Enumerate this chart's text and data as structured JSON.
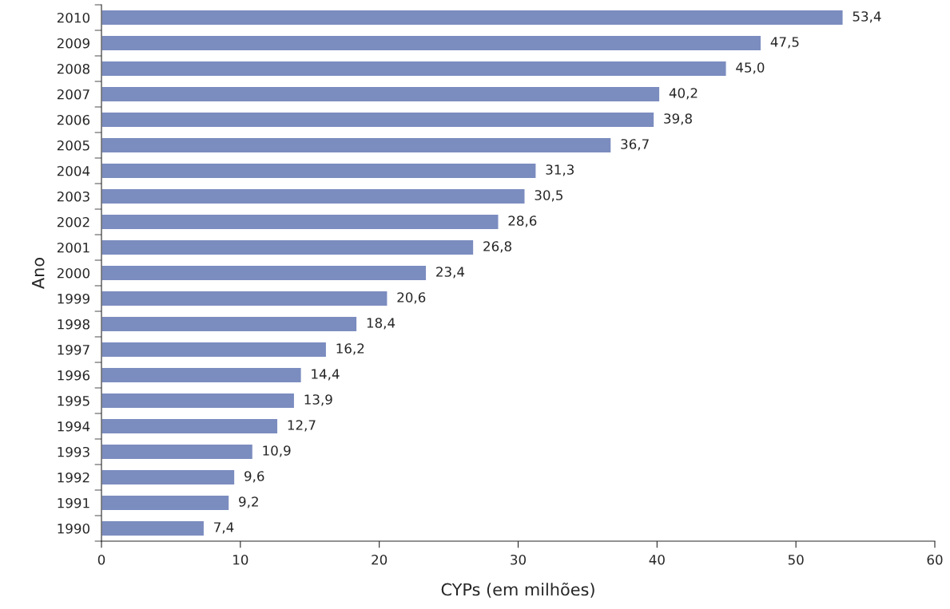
{
  "chart_data": {
    "type": "bar",
    "orientation": "horizontal",
    "xlabel": "CYPs (em milhões)",
    "ylabel": "Ano",
    "categories": [
      "2010",
      "2009",
      "2008",
      "2007",
      "2006",
      "2005",
      "2004",
      "2003",
      "2002",
      "2001",
      "2000",
      "1999",
      "1998",
      "1997",
      "1996",
      "1995",
      "1994",
      "1993",
      "1992",
      "1991",
      "1990"
    ],
    "values": [
      53.4,
      47.5,
      45.0,
      40.2,
      39.8,
      36.7,
      31.3,
      30.5,
      28.6,
      26.8,
      23.4,
      20.6,
      18.4,
      16.2,
      14.4,
      13.9,
      12.7,
      10.9,
      9.6,
      9.2,
      7.4
    ],
    "value_labels": [
      "53,4",
      "47,5",
      "45,0",
      "40,2",
      "39,8",
      "36,7",
      "31,3",
      "30,5",
      "28,6",
      "26,8",
      "23,4",
      "20,6",
      "18,4",
      "16,2",
      "14,4",
      "13,9",
      "12,7",
      "10,9",
      "9,6",
      "9,2",
      "7,4"
    ],
    "color": "#7b8cbf",
    "xlim": [
      0,
      60
    ],
    "xticks": [
      0,
      10,
      20,
      30,
      40,
      50,
      60
    ],
    "grid": false,
    "legend": false
  }
}
